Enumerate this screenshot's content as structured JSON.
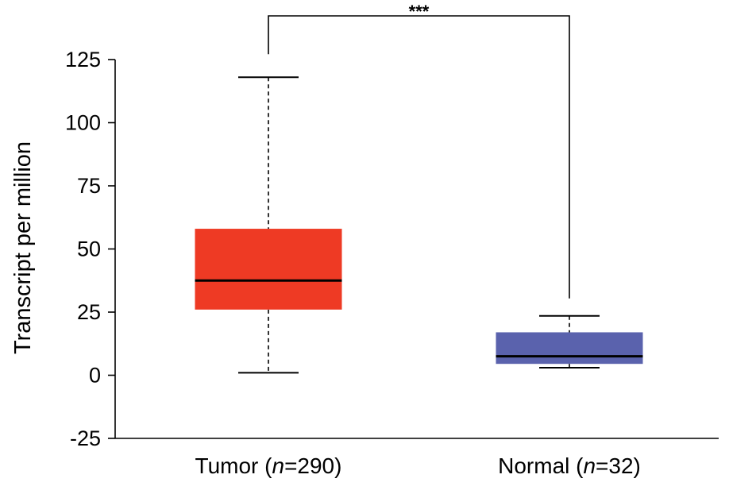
{
  "chart_data": {
    "type": "box",
    "title": "",
    "xlabel": "",
    "ylabel": "Transcript per million",
    "ylim": [
      -25,
      125
    ],
    "yticks": [
      125,
      100,
      75,
      50,
      25,
      0,
      -25
    ],
    "grid": false,
    "categories": [
      {
        "name": "Tumor",
        "n_label": "n",
        "n_value": "=290",
        "suffix": ")"
      },
      {
        "name": "Normal",
        "n_label": "n",
        "n_value": "=32",
        "suffix": ")"
      }
    ],
    "boxes": [
      {
        "category": "Tumor (n=290)",
        "whisker_low": 1,
        "q1": 26,
        "median": 37.5,
        "q3": 58,
        "whisker_high": 118,
        "color": "#ee3a24"
      },
      {
        "category": "Normal (n=32)",
        "whisker_low": 3,
        "q1": 4.5,
        "median": 7.5,
        "q3": 17,
        "whisker_high": 23.5,
        "color": "#5a62ad"
      }
    ],
    "significance": {
      "label": "***",
      "between": [
        "Tumor (n=290)",
        "Normal (n=32)"
      ]
    }
  }
}
